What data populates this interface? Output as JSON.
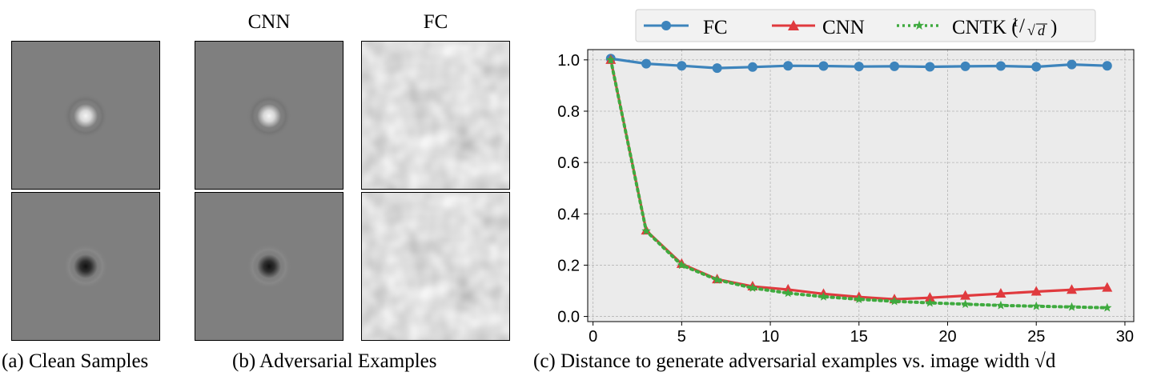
{
  "panels": {
    "col_headers": [
      "CNN",
      "FC"
    ],
    "captions": {
      "a": "(a) Clean Samples",
      "b": "(b) Adversarial Examples",
      "c": "(c) Distance to generate adversarial examples vs. image width √d"
    },
    "colors": {
      "background_gray": "#7f7f7f",
      "bright_blob": "#f2f2f2",
      "dark_blob": "#1a1a1a"
    }
  },
  "chart_data": {
    "type": "line",
    "title": "",
    "xlabel": "",
    "ylabel": "",
    "xlim": [
      -0.3,
      30.5
    ],
    "ylim": [
      -0.02,
      1.04
    ],
    "xticks": [
      0,
      5,
      10,
      15,
      20,
      25,
      30
    ],
    "yticks": [
      0.0,
      0.2,
      0.4,
      0.6,
      0.8,
      1.0
    ],
    "xtick_labels": [
      "0",
      "5",
      "10",
      "15",
      "20",
      "25",
      "30"
    ],
    "ytick_labels": [
      "0.0",
      "0.2",
      "0.4",
      "0.6",
      "0.8",
      "1.0"
    ],
    "grid": true,
    "legend_position": "top-center",
    "x": [
      1,
      3,
      5,
      7,
      9,
      11,
      13,
      15,
      17,
      19,
      21,
      23,
      25,
      27,
      29
    ],
    "series": [
      {
        "name": "FC",
        "color": "#3d84bc",
        "marker": "circle",
        "style": "solid",
        "values": [
          1.005,
          0.985,
          0.977,
          0.968,
          0.972,
          0.977,
          0.976,
          0.974,
          0.975,
          0.973,
          0.975,
          0.976,
          0.973,
          0.982,
          0.977
        ]
      },
      {
        "name": "CNN",
        "color": "#e03a3e",
        "marker": "triangle",
        "style": "solid",
        "values": [
          1.0,
          0.335,
          0.205,
          0.145,
          0.117,
          0.105,
          0.088,
          0.076,
          0.067,
          0.073,
          0.081,
          0.089,
          0.097,
          0.104,
          0.112
        ]
      },
      {
        "name": "CNTK (1/√d)",
        "color": "#3faa3f",
        "marker": "star",
        "style": "dotted",
        "values": [
          1.0,
          0.333,
          0.2,
          0.143,
          0.111,
          0.091,
          0.077,
          0.067,
          0.059,
          0.053,
          0.048,
          0.043,
          0.04,
          0.037,
          0.034
        ]
      }
    ],
    "legend": {
      "fc": "FC",
      "cnn": "CNN",
      "cntk_prefix": "CNTK (",
      "cntk_num": "1",
      "cntk_den": "d",
      "cntk_suffix": ")"
    }
  }
}
